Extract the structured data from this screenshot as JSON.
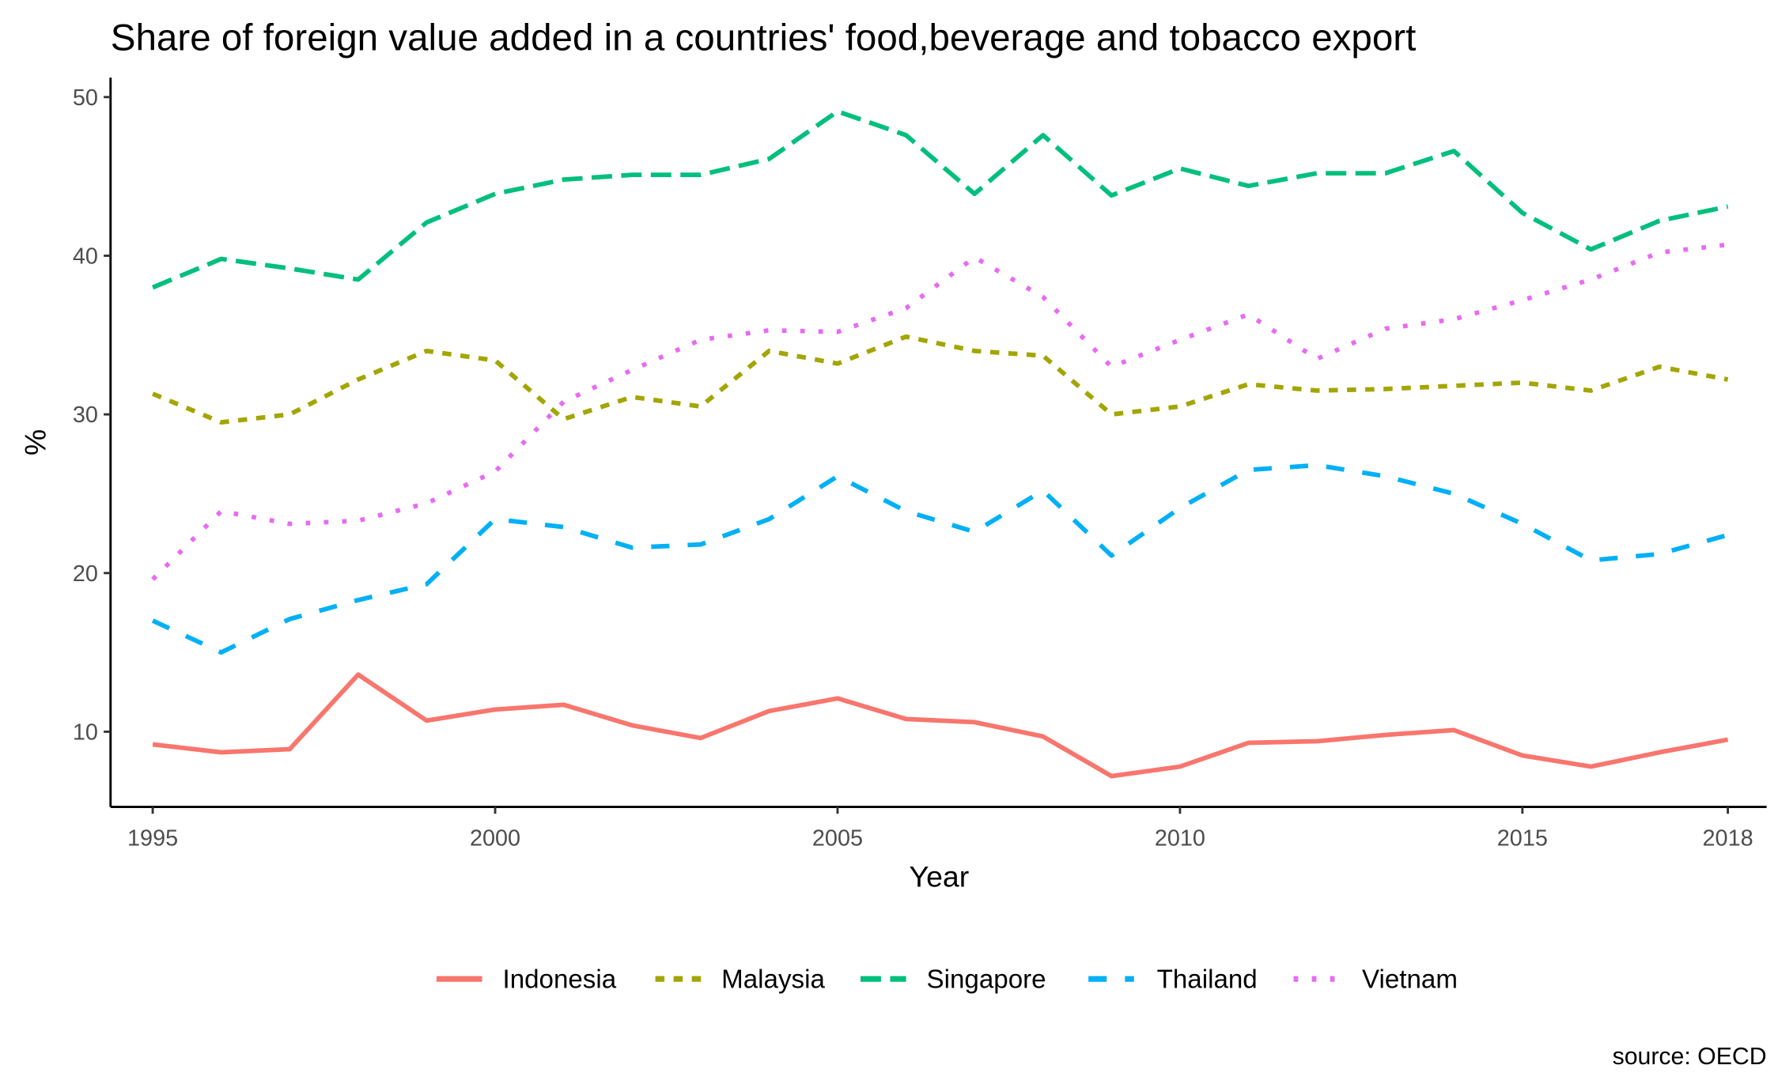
{
  "chart_data": {
    "type": "line",
    "title": "Share of foreign value added in a countries' food,beverage and tobacco export",
    "xlabel": "Year",
    "ylabel": "%",
    "caption": "source: OECD",
    "xlim": [
      1995,
      2018
    ],
    "ylim": [
      5,
      51
    ],
    "x_ticks": [
      1995,
      2000,
      2005,
      2010,
      2015,
      2018
    ],
    "y_ticks": [
      10,
      20,
      30,
      40,
      50
    ],
    "grid": false,
    "legend_position": "bottom",
    "x": [
      1995,
      1996,
      1997,
      1998,
      1999,
      2000,
      2001,
      2002,
      2003,
      2004,
      2005,
      2006,
      2007,
      2008,
      2009,
      2010,
      2011,
      2012,
      2013,
      2014,
      2015,
      2016,
      2017,
      2018
    ],
    "series": [
      {
        "name": "Indonesia",
        "color": "#F8766D",
        "linetype": "solid",
        "values": [
          9.2,
          8.7,
          8.9,
          13.6,
          10.7,
          11.4,
          11.7,
          10.4,
          9.6,
          11.3,
          12.1,
          10.8,
          10.6,
          9.7,
          7.2,
          7.8,
          9.3,
          9.4,
          9.8,
          10.1,
          8.5,
          7.8,
          8.7,
          9.5
        ]
      },
      {
        "name": "Malaysia",
        "color": "#A3A500",
        "linetype": "dashed",
        "values": [
          31.3,
          29.5,
          30.0,
          32.2,
          34.0,
          33.4,
          29.7,
          31.1,
          30.5,
          34.0,
          33.2,
          34.9,
          34.0,
          33.7,
          30.0,
          30.5,
          31.9,
          31.5,
          31.6,
          31.8,
          32.0,
          31.5,
          33.0,
          32.2
        ]
      },
      {
        "name": "Singapore",
        "color": "#00BF7D",
        "linetype": "longdash",
        "values": [
          38.0,
          39.8,
          39.2,
          38.5,
          42.1,
          43.9,
          44.8,
          45.1,
          45.1,
          46.1,
          49.1,
          47.6,
          43.9,
          47.6,
          43.8,
          45.5,
          44.4,
          45.2,
          45.2,
          46.6,
          42.7,
          40.4,
          42.2,
          43.1
        ]
      },
      {
        "name": "Thailand",
        "color": "#00B0F6",
        "linetype": "longdash-wide",
        "values": [
          17.0,
          15.0,
          17.1,
          18.3,
          19.3,
          23.4,
          22.9,
          21.6,
          21.8,
          23.4,
          26.1,
          23.9,
          22.6,
          25.2,
          21.1,
          24.1,
          26.5,
          26.8,
          26.1,
          25.0,
          23.1,
          20.8,
          21.2,
          22.4
        ]
      },
      {
        "name": "Vietnam",
        "color": "#E76BF3",
        "linetype": "dotted",
        "values": [
          19.6,
          23.9,
          23.1,
          23.3,
          24.4,
          26.4,
          30.8,
          32.8,
          34.7,
          35.3,
          35.2,
          36.7,
          39.9,
          37.4,
          33.0,
          34.7,
          36.3,
          33.5,
          35.4,
          36.0,
          37.2,
          38.5,
          40.2,
          40.7
        ]
      }
    ]
  }
}
